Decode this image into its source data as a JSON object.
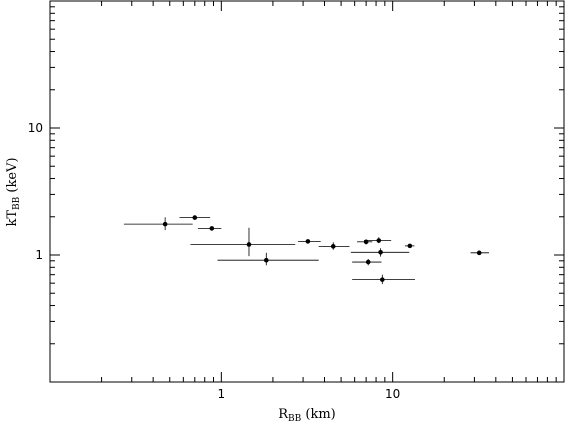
{
  "chart_data": {
    "type": "scatter",
    "x_scale": "log",
    "y_scale": "log",
    "xlim": [
      0.1,
      100
    ],
    "ylim": [
      0.1,
      100
    ],
    "grid": false,
    "xlabel": {
      "main": "R",
      "sub": "BB",
      "unit": " (km)"
    },
    "ylabel": {
      "main": "kT",
      "sub": "BB",
      "unit": " (keV)"
    },
    "x_tick_labels": [
      {
        "value": 1,
        "label": "1"
      },
      {
        "value": 10,
        "label": "10"
      }
    ],
    "y_tick_labels": [
      {
        "value": 1,
        "label": "1"
      },
      {
        "value": 10,
        "label": "10"
      }
    ],
    "points": [
      {
        "x": 0.47,
        "y": 1.75,
        "xerr": [
          0.27,
          0.68
        ],
        "yerr": [
          1.57,
          1.98
        ]
      },
      {
        "x": 0.7,
        "y": 1.97,
        "xerr": [
          0.57,
          0.86
        ],
        "yerr": [
          1.9,
          2.04
        ]
      },
      {
        "x": 0.88,
        "y": 1.62,
        "xerr": [
          0.73,
          1.0
        ],
        "yerr": [
          1.57,
          1.67
        ]
      },
      {
        "x": 1.45,
        "y": 1.21,
        "xerr": [
          0.66,
          2.7
        ],
        "yerr": [
          0.98,
          1.64
        ]
      },
      {
        "x": 1.83,
        "y": 0.91,
        "xerr": [
          0.95,
          3.7
        ],
        "yerr": [
          0.83,
          1.04
        ]
      },
      {
        "x": 3.2,
        "y": 1.28,
        "xerr": [
          2.8,
          3.8
        ],
        "yerr": [
          1.23,
          1.32
        ]
      },
      {
        "x": 4.5,
        "y": 1.17,
        "xerr": [
          3.7,
          5.6
        ],
        "yerr": [
          1.1,
          1.26
        ]
      },
      {
        "x": 7.0,
        "y": 1.27,
        "xerr": [
          6.2,
          7.6
        ],
        "yerr": [
          1.21,
          1.32
        ]
      },
      {
        "x": 8.3,
        "y": 1.3,
        "xerr": [
          6.8,
          9.8
        ],
        "yerr": [
          1.24,
          1.38
        ]
      },
      {
        "x": 8.5,
        "y": 1.05,
        "xerr": [
          5.7,
          12.5
        ],
        "yerr": [
          0.97,
          1.13
        ]
      },
      {
        "x": 7.2,
        "y": 0.88,
        "xerr": [
          5.8,
          8.6
        ],
        "yerr": [
          0.83,
          0.93
        ]
      },
      {
        "x": 8.7,
        "y": 0.64,
        "xerr": [
          5.8,
          13.5
        ],
        "yerr": [
          0.59,
          0.7
        ]
      },
      {
        "x": 12.6,
        "y": 1.18,
        "xerr": [
          11.8,
          13.4
        ],
        "yerr": [
          1.16,
          1.2
        ]
      },
      {
        "x": 32.0,
        "y": 1.04,
        "xerr": [
          28.5,
          36.5
        ],
        "yerr": [
          1.03,
          1.05
        ]
      }
    ]
  }
}
